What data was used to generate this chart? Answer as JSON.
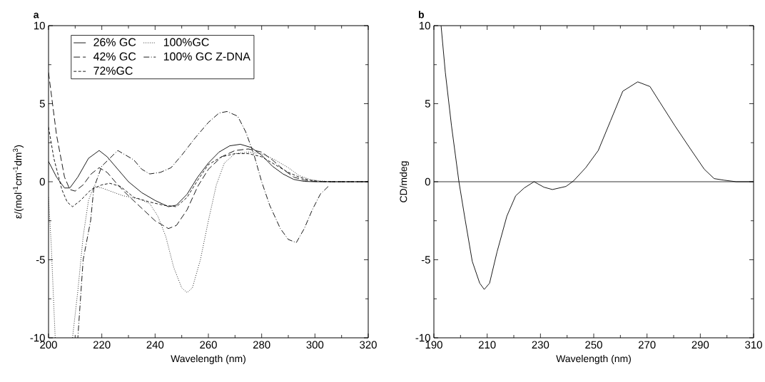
{
  "chart_data": [
    {
      "type": "line",
      "title": "a",
      "xlabel": "Wavelength (nm)",
      "ylabel": "ε/(mol$^{-1}$cm$^{-1}$dm$^{3}$)",
      "xlim": [
        200,
        320
      ],
      "ylim": [
        -10,
        10
      ],
      "xticks": [
        200,
        220,
        240,
        260,
        280,
        300,
        320
      ],
      "yticks": [
        -10,
        -5,
        0,
        5,
        10
      ],
      "grid": false,
      "legend": "top left",
      "marker": "none",
      "series": [
        {
          "name": "26% GC",
          "color": "#000000",
          "line_style": "solid",
          "x": [
            200,
            203,
            206,
            208,
            211,
            215,
            219,
            222,
            226,
            230,
            235,
            240,
            245,
            248,
            252,
            256,
            260,
            264,
            268,
            272,
            276,
            280,
            284,
            288,
            292,
            296,
            300,
            320
          ],
          "values": [
            1.3,
            0.3,
            -0.4,
            -0.4,
            0.3,
            1.5,
            2.0,
            1.6,
            0.8,
            0.0,
            -0.7,
            -1.2,
            -1.6,
            -1.5,
            -0.8,
            0.3,
            1.2,
            1.9,
            2.3,
            2.4,
            2.2,
            1.7,
            1.0,
            0.5,
            0.15,
            0.02,
            0,
            0
          ]
        },
        {
          "name": "100%GC",
          "color": "#000000",
          "line_style": "dotted",
          "x": [
            200,
            201,
            202,
            202.5,
            205,
            209,
            211,
            213,
            215,
            217,
            220,
            228,
            234,
            238,
            241,
            244,
            247,
            250,
            252,
            254,
            257,
            260,
            263,
            266,
            270,
            275,
            280,
            285,
            290,
            294,
            298,
            302,
            306,
            320
          ],
          "values": [
            -1.0,
            -4,
            -8,
            -10,
            null,
            -10,
            -7,
            -3.5,
            -1.2,
            -0.3,
            -0.4,
            -0.9,
            -1.1,
            -1.4,
            -2.2,
            -3.5,
            -5.5,
            -6.8,
            -7.1,
            -6.8,
            -5,
            -2.5,
            -0.2,
            1.2,
            1.8,
            1.9,
            1.8,
            1.4,
            0.9,
            0.4,
            0.15,
            0.05,
            0,
            0
          ]
        },
        {
          "name": "42% GC",
          "color": "#000000",
          "line_style": "dashed",
          "x": [
            200,
            203,
            206,
            208,
            210,
            213,
            216,
            219,
            222,
            226,
            230,
            235,
            240,
            245,
            248,
            252,
            256,
            260,
            265,
            270,
            275,
            280,
            284,
            288,
            292,
            296,
            300,
            305,
            320
          ],
          "values": [
            7,
            3,
            0.3,
            -0.5,
            -0.6,
            -0.2,
            0.5,
            0.9,
            0.6,
            -0.2,
            -0.9,
            -1.7,
            -2.5,
            -3.0,
            -2.8,
            -1.8,
            -0.3,
            0.8,
            1.6,
            2.0,
            2.1,
            1.9,
            1.4,
            0.8,
            0.3,
            0.1,
            0.02,
            0,
            0
          ]
        },
        {
          "name": "100% GC Z-DNA",
          "color": "#000000",
          "line_style": "dashdot",
          "x": [
            211,
            213,
            215.8,
            217,
            220,
            226,
            232,
            235,
            238,
            242,
            246,
            250,
            255,
            260,
            264,
            267,
            271,
            274,
            277,
            280,
            283,
            287,
            290,
            293,
            296,
            299,
            302,
            305
          ],
          "values": [
            -10,
            -5,
            -2.5,
            -0.4,
            1.0,
            2.0,
            1.4,
            0.8,
            0.5,
            0.6,
            0.9,
            1.7,
            2.8,
            3.8,
            4.4,
            4.5,
            4.2,
            3.2,
            1.8,
            0.0,
            -1.5,
            -3.0,
            -3.7,
            -3.9,
            -3.0,
            -1.8,
            -0.8,
            -0.3
          ]
        },
        {
          "name": "72%GC",
          "color": "#000000",
          "line_style": "dashed",
          "x": [
            200,
            202,
            205,
            207,
            209,
            212,
            216,
            220,
            223,
            227,
            232,
            238,
            243,
            248,
            252,
            256,
            260,
            265,
            270,
            275,
            280,
            285,
            290,
            294,
            298,
            302,
            308,
            320
          ],
          "values": [
            3.5,
            1.5,
            -0.5,
            -1.3,
            -1.6,
            -1.2,
            -0.5,
            -0.2,
            -0.1,
            -0.3,
            -1.0,
            -1.3,
            -1.5,
            -1.6,
            -1.0,
            0.1,
            1.1,
            1.6,
            1.8,
            1.8,
            1.6,
            1.1,
            0.6,
            0.3,
            0.1,
            0.02,
            0,
            0
          ]
        }
      ]
    },
    {
      "type": "line",
      "title": "b",
      "xlabel": "Wavelength (nm)",
      "ylabel": "CD/mdeg",
      "xlim": [
        190,
        310
      ],
      "ylim": [
        -10,
        10
      ],
      "xticks": [
        190,
        210,
        230,
        250,
        270,
        290,
        310
      ],
      "yticks": [
        -10,
        -5,
        0,
        5,
        10
      ],
      "grid": false,
      "legend": false,
      "marker": "none",
      "ref_lines": [
        {
          "axis": "y",
          "value": 0,
          "color": "#000000"
        }
      ],
      "series": [
        {
          "color": "#000000",
          "line_style": "solid",
          "x": [
            192.7,
            194.3,
            196.6,
            199.4,
            201.7,
            204.4,
            207.2,
            208.9,
            210.9,
            213.7,
            217.4,
            220.7,
            223.9,
            227.6,
            231.3,
            234.5,
            239.6,
            242.4,
            247,
            251.7,
            256.3,
            260.9,
            266.5,
            271.1,
            274.8,
            280.4,
            285.9,
            291.5,
            295.2,
            298.9,
            303.5,
            310
          ],
          "values": [
            10,
            7.0,
            3.6,
            0,
            -2.4,
            -5.1,
            -6.5,
            -6.9,
            -6.5,
            -4.5,
            -2.2,
            -0.9,
            -0.4,
            0.0,
            -0.35,
            -0.5,
            -0.3,
            0.05,
            0.9,
            2.0,
            3.9,
            5.8,
            6.4,
            6.1,
            5.1,
            3.6,
            2.2,
            0.8,
            0.2,
            0.1,
            0,
            0
          ]
        }
      ]
    }
  ]
}
